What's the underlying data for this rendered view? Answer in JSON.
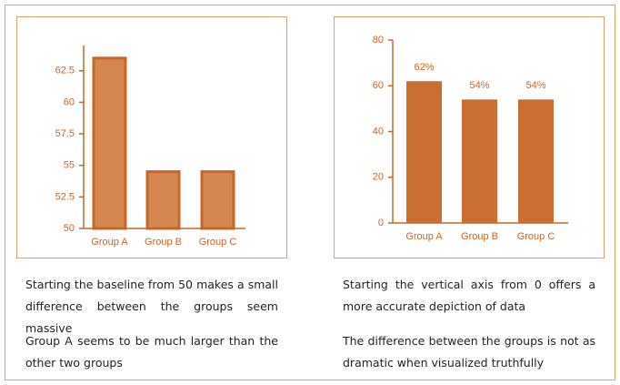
{
  "chart_data": [
    {
      "type": "bar",
      "categories": [
        "Group A",
        "Group B",
        "Group C"
      ],
      "values": [
        63.5,
        54.5,
        54.5
      ],
      "color": "#d4874f",
      "edge_color": "#c8662a",
      "ylim": [
        50,
        64.5
      ],
      "yticks": [
        50,
        52.5,
        55,
        57.5,
        60,
        62.5
      ]
    },
    {
      "type": "bar",
      "categories": [
        "Group A",
        "Group B",
        "Group C"
      ],
      "values": [
        62,
        54,
        54
      ],
      "value_labels": [
        "62%",
        "54%",
        "54%"
      ],
      "color": "#c96f34",
      "ylim": [
        0,
        80
      ],
      "yticks": [
        0,
        20,
        40,
        60,
        80
      ]
    }
  ],
  "notes": [
    [
      "Starting the baseline from 50 makes a small difference between the groups seem massive",
      "Group A seems to be much larger than the other two groups"
    ],
    [
      "Starting the vertical axis from 0 offers a more accurate depiction of data",
      "The difference between the groups is not as dramatic when visualized truthfully"
    ]
  ]
}
